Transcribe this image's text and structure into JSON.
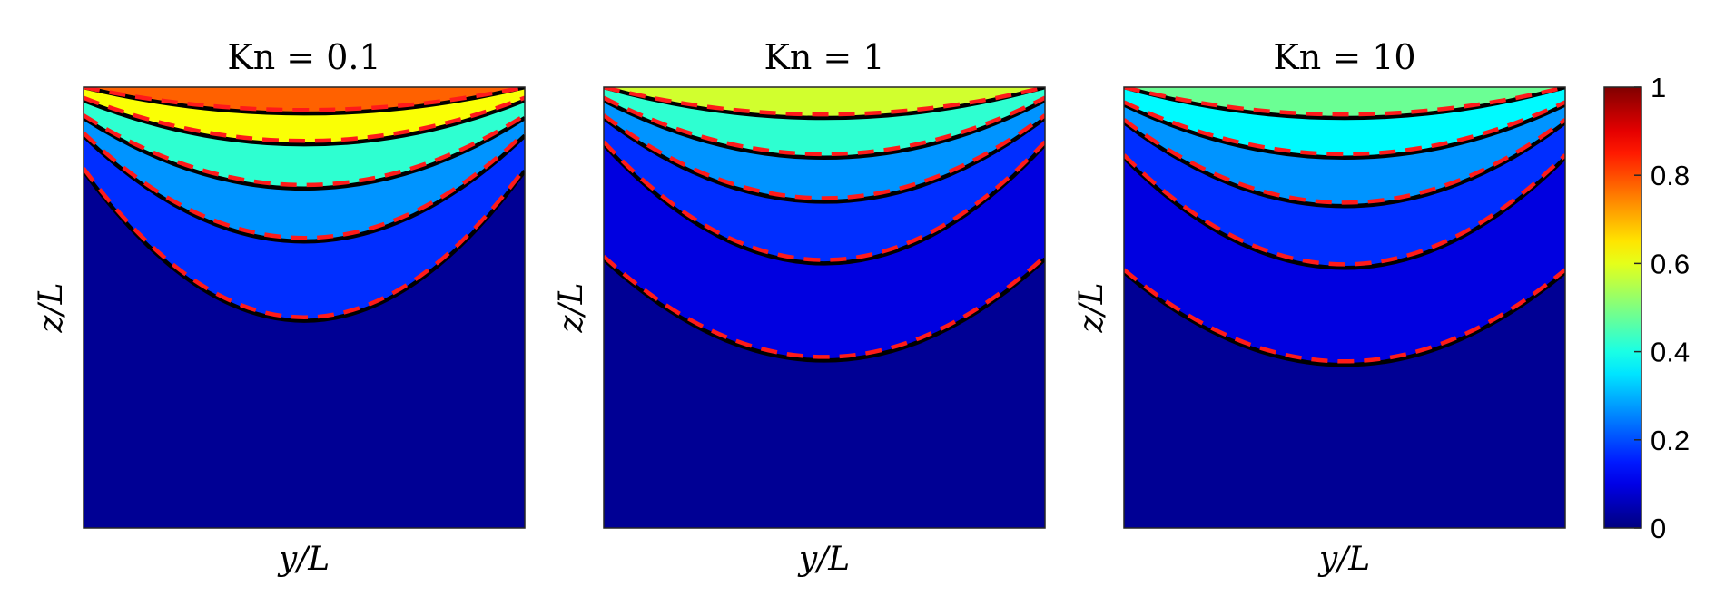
{
  "chart_data": [
    {
      "type": "heatmap",
      "title": "Kn = 0.1",
      "xlabel": "y/L",
      "ylabel": "z/L",
      "color_range": [
        0,
        1
      ],
      "contours": [
        {
          "level": 0.7,
          "edge_depth": 0.0,
          "center_depth": 0.06
        },
        {
          "level": 0.5,
          "edge_depth": 0.03,
          "center_depth": 0.13
        },
        {
          "level": 0.3,
          "edge_depth": 0.07,
          "center_depth": 0.23
        },
        {
          "level": 0.2,
          "edge_depth": 0.11,
          "center_depth": 0.35
        },
        {
          "level": 0.1,
          "edge_depth": 0.19,
          "center_depth": 0.53
        }
      ]
    },
    {
      "type": "heatmap",
      "title": "Kn = 1",
      "xlabel": "y/L",
      "ylabel": "z/L",
      "color_range": [
        0,
        1
      ],
      "contours": [
        {
          "level": 0.5,
          "edge_depth": 0.0,
          "center_depth": 0.07
        },
        {
          "level": 0.3,
          "edge_depth": 0.03,
          "center_depth": 0.16
        },
        {
          "level": 0.2,
          "edge_depth": 0.07,
          "center_depth": 0.26
        },
        {
          "level": 0.1,
          "edge_depth": 0.13,
          "center_depth": 0.4
        },
        {
          "level": 0.05,
          "edge_depth": 0.39,
          "center_depth": 0.62
        }
      ]
    },
    {
      "type": "heatmap",
      "title": "Kn = 10",
      "xlabel": "y/L",
      "ylabel": "z/L",
      "color_range": [
        0,
        1
      ],
      "contours": [
        {
          "level": 0.4,
          "edge_depth": 0.0,
          "center_depth": 0.07
        },
        {
          "level": 0.3,
          "edge_depth": 0.04,
          "center_depth": 0.16
        },
        {
          "level": 0.2,
          "edge_depth": 0.08,
          "center_depth": 0.27
        },
        {
          "level": 0.1,
          "edge_depth": 0.16,
          "center_depth": 0.41
        },
        {
          "level": 0.05,
          "edge_depth": 0.42,
          "center_depth": 0.63
        }
      ]
    }
  ],
  "colorbar": {
    "range": [
      0,
      1
    ],
    "ticks": [
      "0",
      "0.2",
      "0.4",
      "0.6",
      "0.8",
      "1"
    ],
    "tick_values": [
      0,
      0.2,
      0.4,
      0.6,
      0.8,
      1
    ],
    "colormap": "jet"
  },
  "line_colors": {
    "solid": "#000000",
    "dashed": "#ff1a1a"
  }
}
